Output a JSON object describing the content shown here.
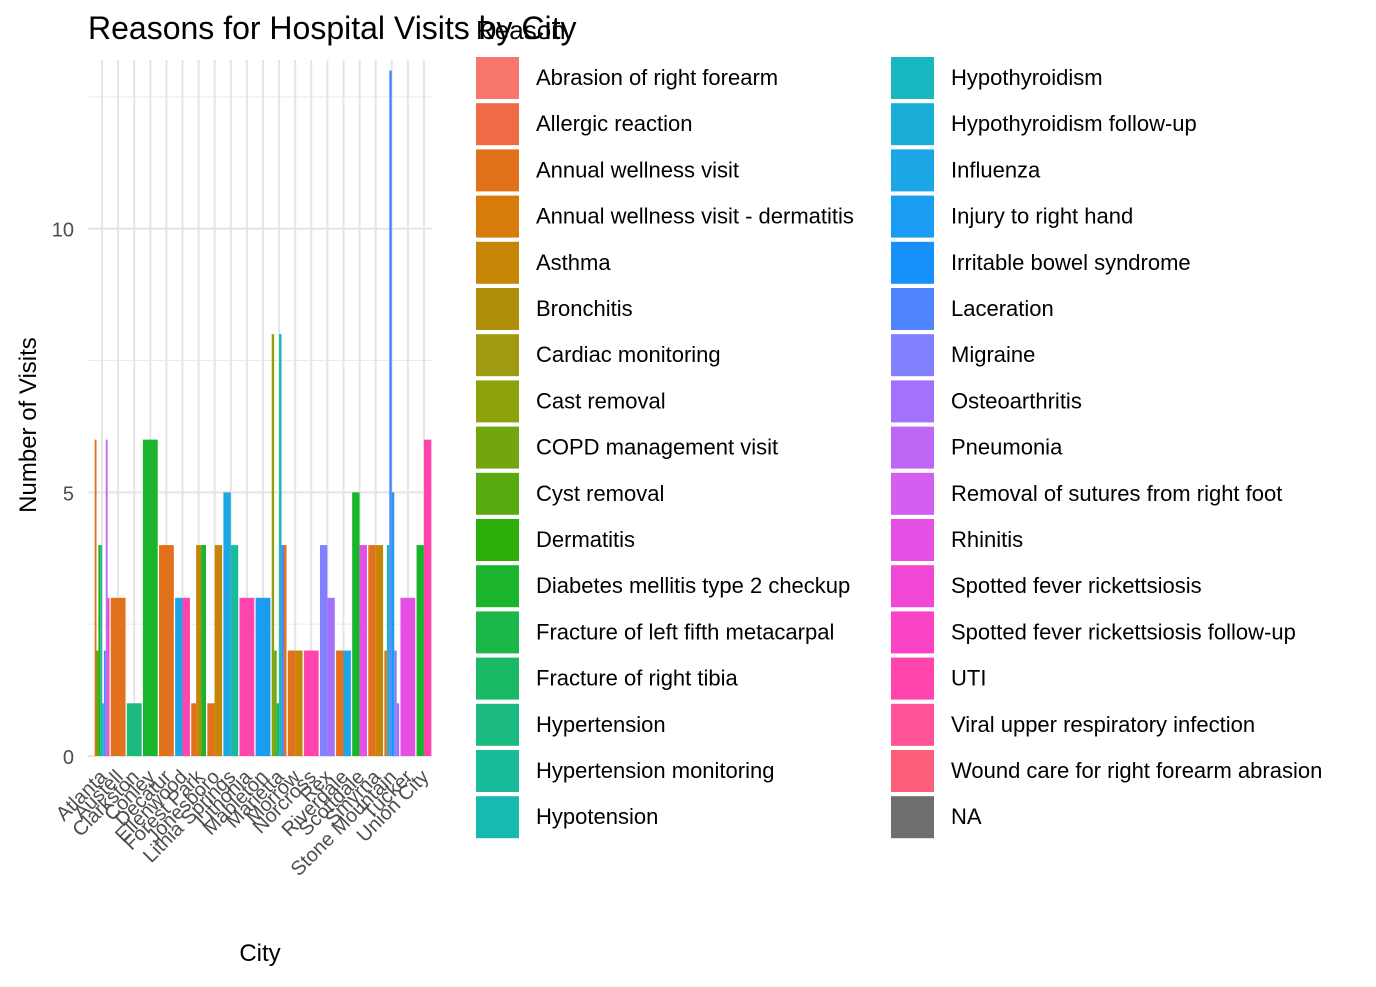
{
  "chart_data": {
    "type": "bar",
    "title": "Reasons for Hospital Visits by City",
    "xlabel": "City",
    "ylabel": "Number of Visits",
    "legend_title": "Reason",
    "legend_position": "right",
    "grid": true,
    "ylim": [
      0,
      13.2
    ],
    "yticks": [
      0,
      5,
      10
    ],
    "categories": [
      "Atlanta",
      "Austell",
      "Clarkston",
      "Conley",
      "Decatur",
      "Ellenwood",
      "Forest Park",
      "Jonesboro",
      "Lithia Springs",
      "Lithonia",
      "Mableton",
      "Marietta",
      "Morrow",
      "Norcross",
      "Rex",
      "Riverdale",
      "Scottdale",
      "Smyrna",
      "Stone Mountain",
      "Tucker",
      "Union City"
    ],
    "reasons": [
      {
        "name": "Abrasion of right forearm",
        "color": "#F8766D"
      },
      {
        "name": "Allergic reaction",
        "color": "#EE6B46"
      },
      {
        "name": "Annual wellness visit",
        "color": "#E2711C"
      },
      {
        "name": "Annual wellness visit - dermatitis",
        "color": "#D77C0A"
      },
      {
        "name": "Asthma",
        "color": "#C68505"
      },
      {
        "name": "Bronchitis",
        "color": "#B08E0A"
      },
      {
        "name": "Cardiac monitoring",
        "color": "#A09A12"
      },
      {
        "name": "Cast removal",
        "color": "#8DA10C"
      },
      {
        "name": "COPD management visit",
        "color": "#73A60E"
      },
      {
        "name": "Cyst removal",
        "color": "#57AA10"
      },
      {
        "name": "Dermatitis",
        "color": "#2DAE09"
      },
      {
        "name": "Diabetes mellitis type 2 checkup",
        "color": "#1AB52D"
      },
      {
        "name": "Fracture of left fifth metacarpal",
        "color": "#1CB749"
      },
      {
        "name": "Fracture of right tibia",
        "color": "#19B966"
      },
      {
        "name": "Hypertension",
        "color": "#1ABA80"
      },
      {
        "name": "Hypertension monitoring",
        "color": "#19BB9A"
      },
      {
        "name": "Hypotension",
        "color": "#18BAB0"
      },
      {
        "name": "Hypothyroidism",
        "color": "#19B8C1"
      },
      {
        "name": "Hypothyroidism follow-up",
        "color": "#1AAED6"
      },
      {
        "name": "Influenza",
        "color": "#1CA6E6"
      },
      {
        "name": "Injury to right hand",
        "color": "#199CF2"
      },
      {
        "name": "Irritable bowel syndrome",
        "color": "#1790FA"
      },
      {
        "name": "Laceration",
        "color": "#4F86FF"
      },
      {
        "name": "Migraine",
        "color": "#8180FF"
      },
      {
        "name": "Osteoarthritis",
        "color": "#A371FB"
      },
      {
        "name": "Pneumonia",
        "color": "#BE66F5"
      },
      {
        "name": "Removal of sutures from right foot",
        "color": "#D45EF0"
      },
      {
        "name": "Rhinitis",
        "color": "#E44FE4"
      },
      {
        "name": "Spotted fever rickettsiosis",
        "color": "#F147D5"
      },
      {
        "name": "Spotted fever rickettsiosis follow-up",
        "color": "#FA43C4"
      },
      {
        "name": "UTI",
        "color": "#FF44AE"
      },
      {
        "name": "Viral upper respiratory infection",
        "color": "#FF5395"
      },
      {
        "name": "Wound care for right forearm abrasion",
        "color": "#FC5F7A"
      },
      {
        "name": "NA",
        "color": "#6E6E6E"
      }
    ],
    "bars": [
      {
        "city": "Atlanta",
        "reason": "Annual wellness visit",
        "value": 6
      },
      {
        "city": "Atlanta",
        "reason": "Cyst removal",
        "value": 2
      },
      {
        "city": "Atlanta",
        "reason": "Dermatitis",
        "value": 4
      },
      {
        "city": "Atlanta",
        "reason": "Hypertension monitoring",
        "value": 4
      },
      {
        "city": "Atlanta",
        "reason": "Hypothyroidism",
        "value": 1
      },
      {
        "city": "Atlanta",
        "reason": "Laceration",
        "value": 2
      },
      {
        "city": "Atlanta",
        "reason": "Pneumonia",
        "value": 6
      },
      {
        "city": "Atlanta",
        "reason": "UTI",
        "value": 3
      },
      {
        "city": "Austell",
        "reason": "Annual wellness visit",
        "value": 3
      },
      {
        "city": "Clarkston",
        "reason": "Hypertension",
        "value": 1
      },
      {
        "city": "Conley",
        "reason": "Diabetes mellitis type 2 checkup",
        "value": 6
      },
      {
        "city": "Decatur",
        "reason": "Annual wellness visit",
        "value": 4
      },
      {
        "city": "Ellenwood",
        "reason": "Influenza",
        "value": 3
      },
      {
        "city": "Ellenwood",
        "reason": "UTI",
        "value": 3
      },
      {
        "city": "Forest Park",
        "reason": "Annual wellness visit",
        "value": 1
      },
      {
        "city": "Forest Park",
        "reason": "Asthma",
        "value": 4
      },
      {
        "city": "Forest Park",
        "reason": "Diabetes mellitis type 2 checkup",
        "value": 4
      },
      {
        "city": "Jonesboro",
        "reason": "Annual wellness visit",
        "value": 1
      },
      {
        "city": "Jonesboro",
        "reason": "Asthma",
        "value": 4
      },
      {
        "city": "Lithia Springs",
        "reason": "Influenza",
        "value": 5
      },
      {
        "city": "Lithia Springs",
        "reason": "Hypertension monitoring",
        "value": 4
      },
      {
        "city": "Lithonia",
        "reason": "UTI",
        "value": 3
      },
      {
        "city": "Mableton",
        "reason": "Injury to right hand",
        "value": 3
      },
      {
        "city": "Marietta",
        "reason": "Cast removal",
        "value": 8
      },
      {
        "city": "Marietta",
        "reason": "Cyst removal",
        "value": 2
      },
      {
        "city": "Marietta",
        "reason": "Fracture of right tibia",
        "value": 1
      },
      {
        "city": "Marietta",
        "reason": "Hypotension",
        "value": 8
      },
      {
        "city": "Marietta",
        "reason": "Laceration",
        "value": 4
      },
      {
        "city": "Marietta",
        "reason": "Annual wellness visit",
        "value": 4
      },
      {
        "city": "Morrow",
        "reason": "Annual wellness visit",
        "value": 2
      },
      {
        "city": "Morrow",
        "reason": "Asthma",
        "value": 2
      },
      {
        "city": "Norcross",
        "reason": "UTI",
        "value": 2
      },
      {
        "city": "Rex",
        "reason": "Migraine",
        "value": 4
      },
      {
        "city": "Rex",
        "reason": "Osteoarthritis",
        "value": 3
      },
      {
        "city": "Riverdale",
        "reason": "Annual wellness visit",
        "value": 2
      },
      {
        "city": "Riverdale",
        "reason": "Influenza",
        "value": 2
      },
      {
        "city": "Scottdale",
        "reason": "Diabetes mellitis type 2 checkup",
        "value": 5
      },
      {
        "city": "Scottdale",
        "reason": "Rhinitis",
        "value": 4
      },
      {
        "city": "Smyrna",
        "reason": "Annual wellness visit",
        "value": 4
      },
      {
        "city": "Smyrna",
        "reason": "Asthma",
        "value": 4
      },
      {
        "city": "Stone Mountain",
        "reason": "Annual wellness visit",
        "value": 2
      },
      {
        "city": "Stone Mountain",
        "reason": "Hypothyroidism",
        "value": 4
      },
      {
        "city": "Stone Mountain",
        "reason": "Laceration",
        "value": 13
      },
      {
        "city": "Stone Mountain",
        "reason": "Injury to right hand",
        "value": 5
      },
      {
        "city": "Stone Mountain",
        "reason": "Migraine",
        "value": 2
      },
      {
        "city": "Stone Mountain",
        "reason": "Osteoarthritis",
        "value": 1
      },
      {
        "city": "Tucker",
        "reason": "Rhinitis",
        "value": 3
      },
      {
        "city": "Union City",
        "reason": "Diabetes mellitis type 2 checkup",
        "value": 4
      },
      {
        "city": "Union City",
        "reason": "UTI",
        "value": 6
      }
    ]
  }
}
